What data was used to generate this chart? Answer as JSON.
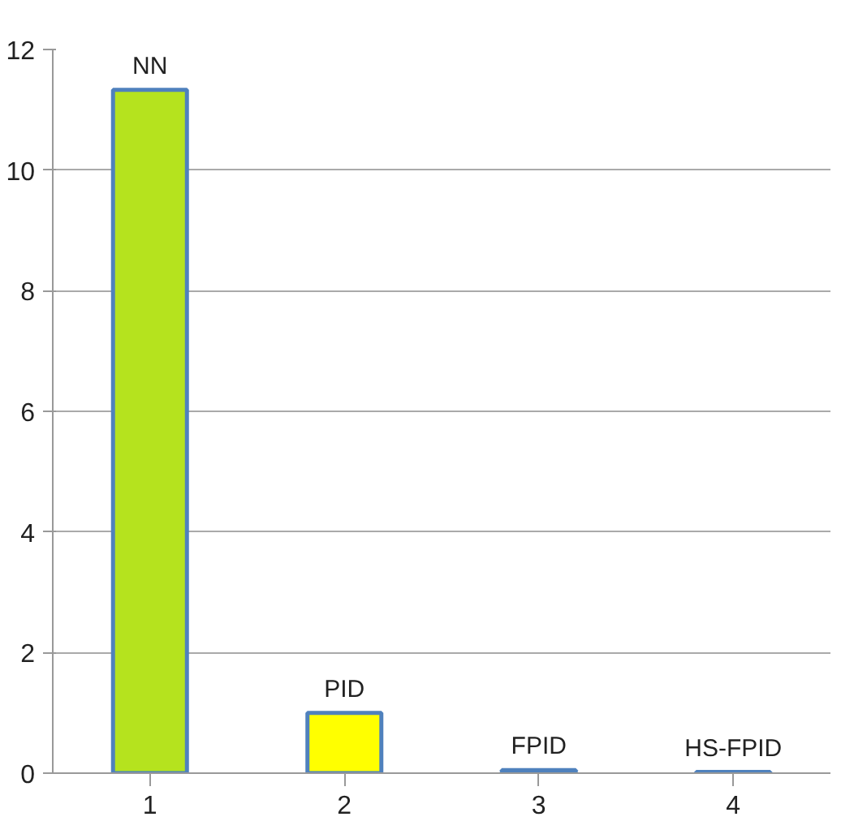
{
  "chart_data": {
    "type": "bar",
    "categories": [
      "1",
      "2",
      "3",
      "4"
    ],
    "values": [
      11.33,
      1.0,
      0.05,
      0.02
    ],
    "colors": [
      "#b5e31e",
      "#ffff00",
      "#c0304a",
      "#4f81bd"
    ],
    "ylim": [
      0,
      12
    ],
    "yticks": [
      0,
      2,
      4,
      6,
      8,
      10,
      12
    ],
    "grid": "y",
    "annotations": [
      {
        "text": "NN",
        "x": "1",
        "y": 11.33
      },
      {
        "text": "PID",
        "x": "2",
        "y": 1.0
      },
      {
        "text": "FPID",
        "x": "3",
        "y": 0.05
      },
      {
        "text": "HS-FPID",
        "x": "4",
        "y": 0.02
      }
    ]
  }
}
